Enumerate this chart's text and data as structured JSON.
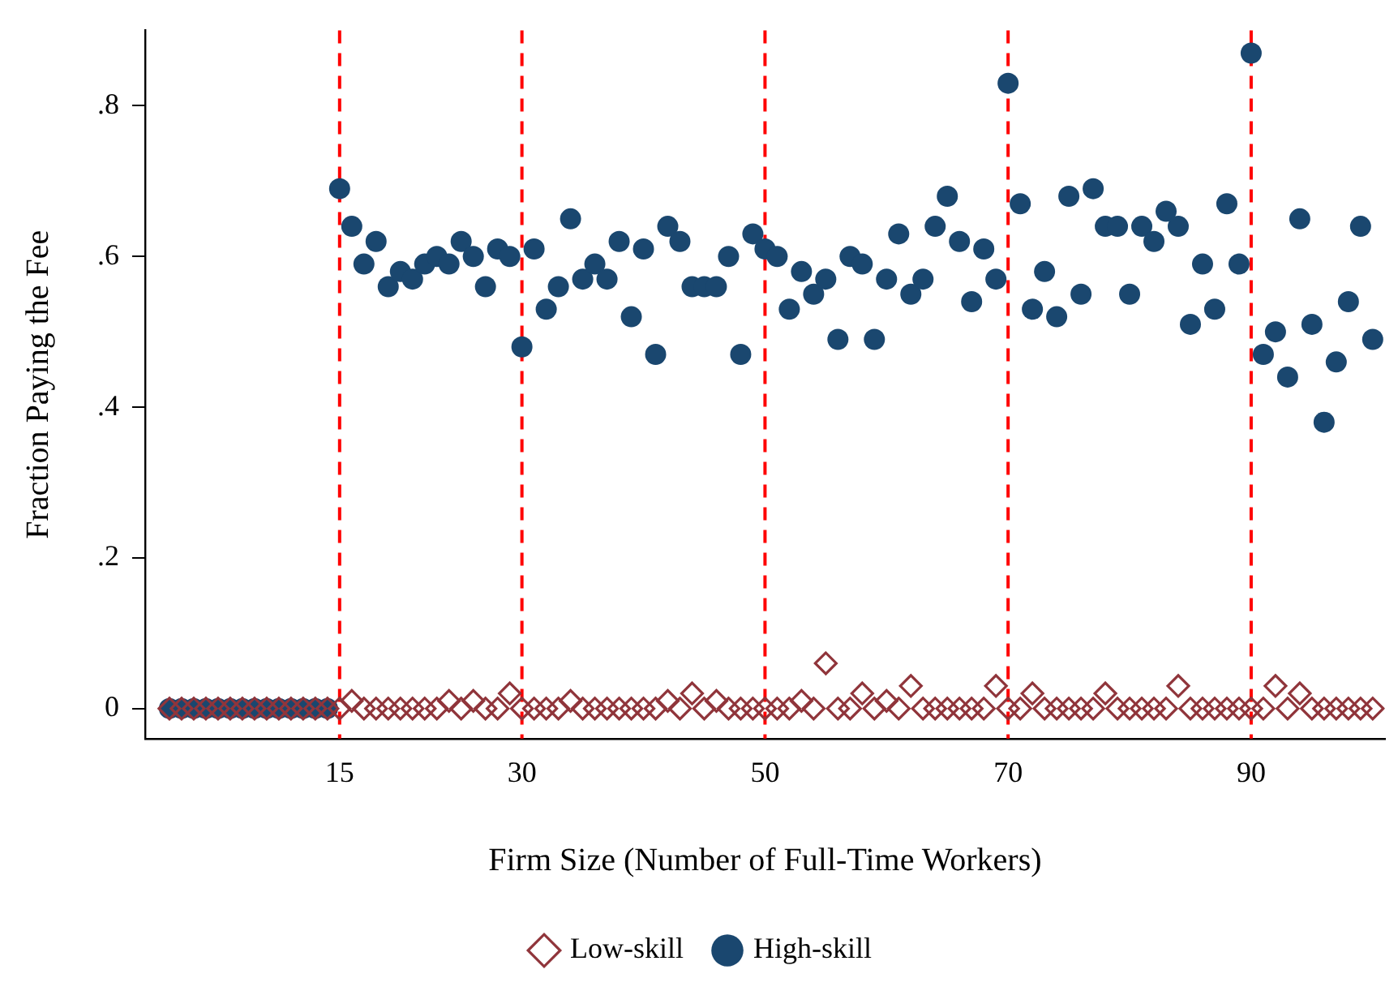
{
  "chart_data": {
    "type": "scatter",
    "xlabel": "Firm Size (Number of Full-Time Workers)",
    "ylabel": "Fraction Paying the Fee",
    "x": [
      1,
      2,
      3,
      4,
      5,
      6,
      7,
      8,
      9,
      10,
      11,
      12,
      13,
      14,
      15,
      16,
      17,
      18,
      19,
      20,
      21,
      22,
      23,
      24,
      25,
      26,
      27,
      28,
      29,
      30,
      31,
      32,
      33,
      34,
      35,
      36,
      37,
      38,
      39,
      40,
      41,
      42,
      43,
      44,
      45,
      46,
      47,
      48,
      49,
      50,
      51,
      52,
      53,
      54,
      55,
      56,
      57,
      58,
      59,
      60,
      61,
      62,
      63,
      64,
      65,
      66,
      67,
      68,
      69,
      70,
      71,
      72,
      73,
      74,
      75,
      76,
      77,
      78,
      79,
      80,
      81,
      82,
      83,
      84,
      85,
      86,
      87,
      88,
      89,
      90,
      91,
      92,
      93,
      94,
      95,
      96,
      97,
      98,
      99,
      100
    ],
    "series": [
      {
        "name": "High-skill",
        "color": "#1a476f",
        "marker": "circle",
        "values": [
          0,
          0,
          0,
          0,
          0,
          0,
          0,
          0,
          0,
          0,
          0,
          0,
          0,
          0,
          0.69,
          0.64,
          0.59,
          0.62,
          0.56,
          0.58,
          0.57,
          0.59,
          0.6,
          0.59,
          0.62,
          0.6,
          0.56,
          0.61,
          0.6,
          0.48,
          0.61,
          0.53,
          0.56,
          0.65,
          0.57,
          0.59,
          0.57,
          0.62,
          0.52,
          0.61,
          0.47,
          0.64,
          0.62,
          0.56,
          0.56,
          0.56,
          0.6,
          0.47,
          0.63,
          0.61,
          0.6,
          0.53,
          0.58,
          0.55,
          0.57,
          0.49,
          0.6,
          0.59,
          0.49,
          0.57,
          0.63,
          0.55,
          0.57,
          0.64,
          0.68,
          0.62,
          0.54,
          0.61,
          0.57,
          0.83,
          0.67,
          0.53,
          0.58,
          0.52,
          0.68,
          0.55,
          0.69,
          0.64,
          0.64,
          0.55,
          0.64,
          0.62,
          0.66,
          0.64,
          0.51,
          0.59,
          0.53,
          0.67,
          0.59,
          0.87,
          0.47,
          0.5,
          0.44,
          0.65,
          0.51,
          0.38,
          0.46,
          0.54,
          0.64,
          0.49
        ]
      },
      {
        "name": "Low-skill",
        "color": "#90353b",
        "marker": "diamond",
        "values": [
          0,
          0,
          0,
          0,
          0,
          0,
          0,
          0,
          0,
          0,
          0,
          0,
          0,
          0,
          0,
          0.01,
          0,
          0,
          0,
          0,
          0,
          0,
          0,
          0.01,
          0,
          0.01,
          0,
          0,
          0.02,
          0,
          0,
          0,
          0,
          0.01,
          0,
          0,
          0,
          0,
          0,
          0,
          0,
          0.01,
          0,
          0.02,
          0,
          0.01,
          0,
          0,
          0,
          0,
          0,
          0,
          0.01,
          0,
          0.06,
          0,
          0,
          0.02,
          0,
          0.01,
          0,
          0.03,
          0,
          0,
          0,
          0,
          0,
          0,
          0.03,
          0,
          0,
          0.02,
          0,
          0,
          0,
          0,
          0,
          0.02,
          0,
          0,
          0,
          0,
          0,
          0.03,
          0,
          0,
          0,
          0,
          0,
          0,
          0,
          0.03,
          0,
          0.02,
          0,
          0,
          0,
          0,
          0,
          0
        ]
      }
    ],
    "xlim": [
      -1,
      101
    ],
    "xticks": [
      15,
      30,
      50,
      70,
      90
    ],
    "ylim": [
      -0.04,
      0.9
    ],
    "yticks": [
      {
        "value": 0,
        "label": "0"
      },
      {
        "value": 0.2,
        "label": ".2"
      },
      {
        "value": 0.4,
        "label": ".4"
      },
      {
        "value": 0.6,
        "label": ".6"
      },
      {
        "value": 0.8,
        "label": ".8"
      }
    ],
    "ref_lines": [
      {
        "axis": "x",
        "value": 15,
        "color": "#ff0000",
        "line_style": "dashed"
      },
      {
        "axis": "x",
        "value": 30,
        "color": "#ff0000",
        "line_style": "dashed"
      },
      {
        "axis": "x",
        "value": 50,
        "color": "#ff0000",
        "line_style": "dashed"
      },
      {
        "axis": "x",
        "value": 70,
        "color": "#ff0000",
        "line_style": "dashed"
      },
      {
        "axis": "x",
        "value": 90,
        "color": "#ff0000",
        "line_style": "dashed"
      }
    ],
    "grid": false,
    "legend": "bottom"
  }
}
